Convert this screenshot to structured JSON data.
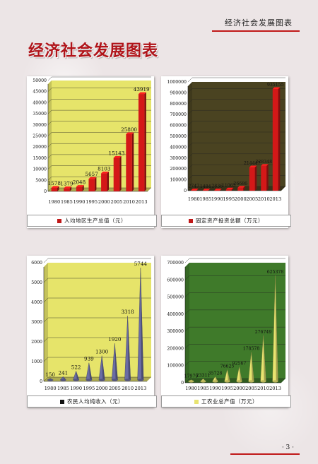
{
  "header": {
    "section_title": "经济社会发展图表"
  },
  "page": {
    "title": "经济社会发展图表",
    "number": "· 3 ·"
  },
  "colors": {
    "accent": "#c01818"
  },
  "chart_data": [
    {
      "type": "bar",
      "categories": [
        "1980",
        "1985",
        "1990",
        "1995",
        "2000",
        "2005",
        "2010",
        "2013"
      ],
      "values": [
        1578,
        1379,
        2048,
        5657,
        8103,
        15143,
        25800,
        43919
      ],
      "ylim": [
        0,
        50000
      ],
      "yticks": [
        0,
        5000,
        10000,
        15000,
        20000,
        25000,
        30000,
        35000,
        40000,
        45000,
        50000
      ],
      "grid": true,
      "legend": "人均地区生产总值（元）",
      "bar_color": "#d41818",
      "plot_bg": "#e6e46a"
    },
    {
      "type": "bar",
      "categories": [
        "1980",
        "1985",
        "1990",
        "1995",
        "2000",
        "2005",
        "2010",
        "2013"
      ],
      "values": [
        2747,
        1484,
        2836,
        11065,
        26686,
        214447,
        228348,
        935155
      ],
      "ylim": [
        0,
        1000000
      ],
      "yticks": [
        0,
        100000,
        200000,
        300000,
        400000,
        500000,
        600000,
        700000,
        800000,
        900000,
        1000000
      ],
      "grid": true,
      "legend": "固定资产投资总额（万元）",
      "bar_color": "#d41818",
      "plot_bg": "#4a4321"
    },
    {
      "type": "bar",
      "categories": [
        "1980",
        "1985",
        "1990",
        "1995",
        "2000",
        "2005",
        "2010",
        "2013"
      ],
      "values": [
        150,
        241,
        522,
        939,
        1300,
        1920,
        3318,
        5744
      ],
      "ylim": [
        0,
        6000
      ],
      "yticks": [
        0,
        1000,
        2000,
        3000,
        4000,
        5000,
        6000
      ],
      "grid": true,
      "legend": "农民人均纯收入（元）",
      "bar_color": "#6a6ca4",
      "plot_bg": "#e6e46a"
    },
    {
      "type": "bar",
      "categories": [
        "1980",
        "1985",
        "1990",
        "1995",
        "2000",
        "2005",
        "2010",
        "2013"
      ],
      "values": [
        17979,
        23311,
        35728,
        76625,
        92567,
        178578,
        276749,
        625378
      ],
      "ylim": [
        0,
        700000
      ],
      "yticks": [
        0,
        100000,
        200000,
        300000,
        400000,
        500000,
        600000,
        700000
      ],
      "grid": true,
      "legend": "工农业总产值（万元）",
      "bar_color": "#e8e470",
      "plot_bg": "#3f7a2a"
    }
  ]
}
